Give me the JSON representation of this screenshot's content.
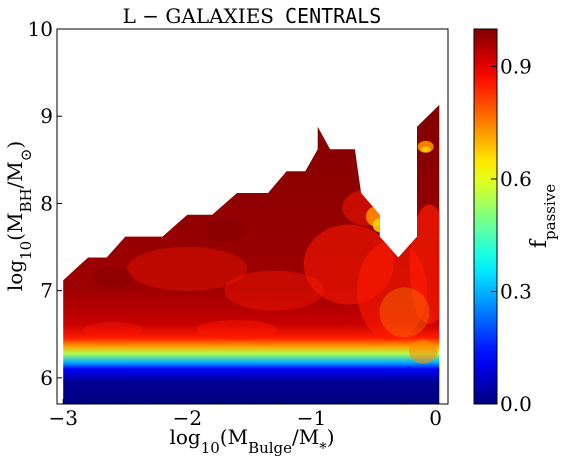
{
  "chart_data": {
    "type": "heatmap",
    "title": {
      "prefix": "L − GALAXIES",
      "suffix": "CENTRALS"
    },
    "xlabel": "log10(MBulge/M*)",
    "ylabel": "log10(MBH/M⊙)",
    "colorbar_label": "fpassive",
    "xlim": [
      -3.05,
      0.1
    ],
    "ylim": [
      5.7,
      10.0
    ],
    "x_ticks": [
      {
        "value": -3,
        "label": "−3"
      },
      {
        "value": -2,
        "label": "−2"
      },
      {
        "value": -1,
        "label": "−1"
      },
      {
        "value": 0,
        "label": "0"
      }
    ],
    "y_ticks": [
      {
        "value": 6,
        "label": "6"
      },
      {
        "value": 7,
        "label": "7"
      },
      {
        "value": 8,
        "label": "8"
      },
      {
        "value": 9,
        "label": "9"
      },
      {
        "value": 10,
        "label": "10"
      }
    ],
    "colorbar_range": [
      0.0,
      1.0
    ],
    "colorbar_ticks": [
      {
        "value": 0.0,
        "label": "0.0"
      },
      {
        "value": 0.3,
        "label": "0.3"
      },
      {
        "value": 0.6,
        "label": "0.6"
      },
      {
        "value": 0.9,
        "label": "0.9"
      }
    ],
    "colormap": "jet",
    "region_upper_boundary": [
      [
        -3.0,
        7.12
      ],
      [
        -2.8,
        7.38
      ],
      [
        -2.65,
        7.38
      ],
      [
        -2.5,
        7.62
      ],
      [
        -2.2,
        7.62
      ],
      [
        -2.0,
        7.87
      ],
      [
        -1.8,
        7.87
      ],
      [
        -1.6,
        8.12
      ],
      [
        -1.35,
        8.12
      ],
      [
        -1.2,
        8.37
      ],
      [
        -1.05,
        8.37
      ],
      [
        -0.95,
        8.62
      ],
      [
        -0.95,
        8.88
      ],
      [
        -0.85,
        8.62
      ],
      [
        -0.65,
        8.62
      ],
      [
        -0.6,
        8.12
      ],
      [
        -0.45,
        7.87
      ],
      [
        -0.45,
        7.62
      ],
      [
        -0.3,
        7.38
      ],
      [
        -0.15,
        7.62
      ],
      [
        -0.15,
        8.88
      ],
      [
        0.03,
        9.13
      ]
    ],
    "region_lower_boundary": [
      [
        0.03,
        5.7
      ],
      [
        -3.0,
        5.7
      ]
    ],
    "gradient_profile": [
      {
        "y": 5.7,
        "value": 0.0
      },
      {
        "y": 5.95,
        "value": 0.02
      },
      {
        "y": 6.1,
        "value": 0.12
      },
      {
        "y": 6.18,
        "value": 0.3
      },
      {
        "y": 6.28,
        "value": 0.55
      },
      {
        "y": 6.36,
        "value": 0.72
      },
      {
        "y": 6.46,
        "value": 0.85
      },
      {
        "y": 6.62,
        "value": 0.93
      },
      {
        "y": 7.0,
        "value": 0.97
      },
      {
        "y": 9.2,
        "value": 1.0
      }
    ],
    "colors": {
      "dark_red": "#7f0000",
      "red": "#ff1a00",
      "orange": "#ff8c00",
      "yellow": "#ffd700",
      "cyan": "#00c8ff",
      "blue": "#0030ff",
      "navy": "#00007f"
    }
  }
}
